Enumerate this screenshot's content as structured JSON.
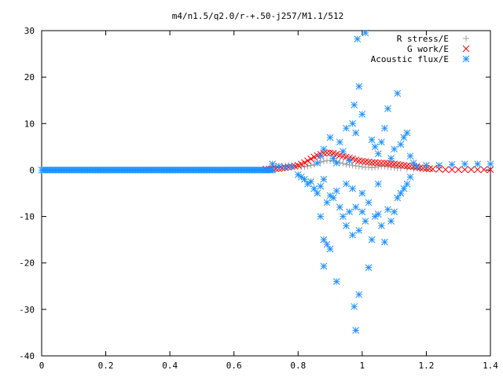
{
  "chart_data": {
    "type": "scatter",
    "title": "m4/n1.5/q2.0/r-+.50-j257/M1.1/512",
    "xlabel": "",
    "ylabel": "",
    "xlim": [
      0,
      1.4
    ],
    "ylim": [
      -40,
      30
    ],
    "x_ticks": [
      "0",
      "0.2",
      "0.4",
      "0.6",
      "0.8",
      "1",
      "1.2",
      "1.4"
    ],
    "y_ticks": [
      "30",
      "20",
      "10",
      "0",
      "-10",
      "-20",
      "-30",
      "-40"
    ],
    "grid": false,
    "legend_position": "top-right",
    "series": [
      {
        "name": "R stress/E",
        "marker": "+",
        "color": "#a0a0a0",
        "points": [
          [
            0.72,
            0.6
          ],
          [
            0.73,
            0.7
          ],
          [
            0.74,
            0.8
          ],
          [
            0.75,
            0.8
          ],
          [
            0.76,
            0.9
          ],
          [
            0.77,
            1.0
          ],
          [
            0.78,
            1.0
          ],
          [
            0.79,
            0.9
          ],
          [
            0.8,
            0.8
          ],
          [
            0.81,
            0.7
          ],
          [
            0.82,
            0.7
          ],
          [
            0.83,
            0.8
          ],
          [
            0.84,
            1.0
          ],
          [
            0.85,
            1.2
          ],
          [
            0.86,
            1.5
          ],
          [
            0.87,
            1.7
          ],
          [
            0.88,
            1.9
          ],
          [
            0.89,
            2.0
          ],
          [
            0.9,
            2.0
          ],
          [
            0.91,
            1.9
          ],
          [
            0.92,
            1.8
          ],
          [
            0.93,
            1.6
          ],
          [
            0.94,
            1.4
          ],
          [
            0.95,
            1.2
          ],
          [
            0.96,
            1.1
          ],
          [
            0.97,
            1.0
          ],
          [
            0.98,
            0.9
          ],
          [
            0.99,
            0.8
          ],
          [
            1.0,
            0.7
          ],
          [
            1.01,
            0.6
          ],
          [
            1.02,
            0.6
          ],
          [
            1.03,
            0.5
          ],
          [
            1.04,
            0.6
          ],
          [
            1.05,
            0.7
          ],
          [
            1.06,
            0.8
          ],
          [
            1.07,
            0.8
          ],
          [
            1.08,
            0.7
          ],
          [
            1.09,
            0.6
          ],
          [
            1.1,
            0.5
          ],
          [
            1.11,
            0.4
          ],
          [
            1.12,
            0.4
          ],
          [
            1.14,
            0.3
          ],
          [
            1.16,
            0.3
          ],
          [
            1.18,
            0.2
          ],
          [
            1.2,
            0.2
          ]
        ]
      },
      {
        "name": "G work/E",
        "marker": "x",
        "color": "#ff0000",
        "points": [
          [
            0.7,
            0.2
          ],
          [
            0.71,
            0.2
          ],
          [
            0.72,
            0.3
          ],
          [
            0.73,
            0.3
          ],
          [
            0.74,
            0.3
          ],
          [
            0.75,
            0.4
          ],
          [
            0.76,
            0.5
          ],
          [
            0.77,
            0.6
          ],
          [
            0.78,
            0.7
          ],
          [
            0.79,
            0.8
          ],
          [
            0.8,
            1.0
          ],
          [
            0.81,
            1.3
          ],
          [
            0.82,
            1.6
          ],
          [
            0.83,
            2.0
          ],
          [
            0.84,
            2.4
          ],
          [
            0.85,
            2.8
          ],
          [
            0.86,
            3.1
          ],
          [
            0.87,
            3.4
          ],
          [
            0.88,
            3.6
          ],
          [
            0.89,
            3.7
          ],
          [
            0.9,
            3.7
          ],
          [
            0.91,
            3.6
          ],
          [
            0.92,
            3.4
          ],
          [
            0.93,
            3.2
          ],
          [
            0.94,
            3.0
          ],
          [
            0.95,
            2.8
          ],
          [
            0.96,
            2.6
          ],
          [
            0.97,
            2.4
          ],
          [
            0.98,
            2.2
          ],
          [
            0.99,
            2.0
          ],
          [
            1.0,
            1.9
          ],
          [
            1.01,
            1.8
          ],
          [
            1.02,
            1.7
          ],
          [
            1.03,
            1.6
          ],
          [
            1.04,
            1.6
          ],
          [
            1.05,
            1.5
          ],
          [
            1.06,
            1.5
          ],
          [
            1.07,
            1.5
          ],
          [
            1.08,
            1.4
          ],
          [
            1.09,
            1.4
          ],
          [
            1.1,
            1.3
          ],
          [
            1.11,
            1.2
          ],
          [
            1.12,
            1.1
          ],
          [
            1.13,
            1.0
          ],
          [
            1.14,
            0.9
          ],
          [
            1.15,
            0.8
          ],
          [
            1.16,
            0.7
          ],
          [
            1.17,
            0.6
          ],
          [
            1.18,
            0.5
          ],
          [
            1.19,
            0.4
          ],
          [
            1.2,
            0.3
          ],
          [
            1.21,
            0.3
          ],
          [
            1.22,
            0.2
          ],
          [
            1.24,
            0.2
          ],
          [
            1.26,
            0.1
          ],
          [
            1.28,
            0.1
          ],
          [
            1.3,
            0.1
          ],
          [
            1.32,
            0.1
          ],
          [
            1.34,
            0.1
          ],
          [
            1.36,
            0.1
          ],
          [
            1.38,
            0.1
          ],
          [
            1.4,
            0.1
          ]
        ]
      },
      {
        "name": "Acoustic flux/E",
        "marker": "*",
        "color": "#1e90ff",
        "points": [
          [
            0.8,
            -1.0
          ],
          [
            0.81,
            -1.5
          ],
          [
            0.82,
            -2.0
          ],
          [
            0.83,
            -3.0
          ],
          [
            0.84,
            -2.5
          ],
          [
            0.85,
            -4.0
          ],
          [
            0.86,
            -5.0
          ],
          [
            0.87,
            -3.5
          ],
          [
            0.88,
            -2.0
          ],
          [
            0.86,
            1.5
          ],
          [
            0.87,
            3.0
          ],
          [
            0.88,
            4.5
          ],
          [
            0.9,
            7.0
          ],
          [
            0.89,
            -7.0
          ],
          [
            0.9,
            -5.5
          ],
          [
            0.91,
            -6.0
          ],
          [
            0.92,
            -4.5
          ],
          [
            0.93,
            -8.0
          ],
          [
            0.94,
            -10.0
          ],
          [
            0.95,
            -12.0
          ],
          [
            0.96,
            -9.0
          ],
          [
            0.97,
            -14.0
          ],
          [
            0.98,
            -8.0
          ],
          [
            0.99,
            -13.0
          ],
          [
            1.0,
            -9.0
          ],
          [
            1.01,
            -11.0
          ],
          [
            1.02,
            -7.0
          ],
          [
            1.03,
            -15.0
          ],
          [
            1.04,
            -10.0
          ],
          [
            1.05,
            -9.5
          ],
          [
            1.06,
            -12.0
          ],
          [
            1.07,
            -15.5
          ],
          [
            1.08,
            -8.5
          ],
          [
            1.09,
            -11.0
          ],
          [
            1.1,
            -9.0
          ],
          [
            1.11,
            -6.0
          ],
          [
            1.12,
            -5.0
          ],
          [
            1.13,
            -4.0
          ],
          [
            1.14,
            -3.0
          ],
          [
            0.87,
            -10.0
          ],
          [
            0.88,
            -15.0
          ],
          [
            0.88,
            -20.7
          ],
          [
            0.89,
            -16.0
          ],
          [
            0.9,
            -17.0
          ],
          [
            0.92,
            -24.0
          ],
          [
            0.98,
            -34.5
          ],
          [
            0.99,
            -26.8
          ],
          [
            0.975,
            -29.4
          ],
          [
            1.02,
            -21.0
          ],
          [
            0.93,
            6.0
          ],
          [
            0.94,
            4.0
          ],
          [
            0.95,
            9.0
          ],
          [
            0.96,
            2.0
          ],
          [
            0.97,
            10.0
          ],
          [
            0.975,
            14.0
          ],
          [
            0.98,
            8.0
          ],
          [
            0.985,
            28.2
          ],
          [
            1.01,
            29.5
          ],
          [
            0.99,
            18.0
          ],
          [
            1.0,
            12.0
          ],
          [
            1.03,
            6.5
          ],
          [
            1.04,
            5.0
          ],
          [
            1.05,
            3.5
          ],
          [
            1.06,
            6.0
          ],
          [
            1.07,
            9.0
          ],
          [
            1.08,
            13.2
          ],
          [
            1.09,
            2.5
          ],
          [
            1.1,
            4.5
          ],
          [
            1.11,
            16.5
          ],
          [
            1.12,
            5.5
          ],
          [
            1.13,
            7.0
          ],
          [
            1.14,
            8.0
          ],
          [
            1.15,
            3.0
          ],
          [
            1.16,
            1.5
          ],
          [
            0.91,
            2.5
          ],
          [
            0.92,
            1.5
          ],
          [
            0.95,
            -3.0
          ],
          [
            0.97,
            -4.0
          ],
          [
            1.0,
            -5.0
          ],
          [
            1.05,
            -3.0
          ],
          [
            1.15,
            -1.5
          ],
          [
            1.17,
            0.8
          ],
          [
            1.2,
            1.0
          ],
          [
            1.24,
            1.0
          ],
          [
            1.28,
            1.2
          ],
          [
            1.32,
            1.3
          ],
          [
            1.36,
            1.3
          ],
          [
            1.4,
            1.3
          ],
          [
            0.7,
            0.0
          ],
          [
            0.72,
            1.3
          ],
          [
            0.74,
            0.8
          ],
          [
            0.76,
            0.6
          ],
          [
            0.78,
            0.7
          ]
        ]
      }
    ]
  }
}
